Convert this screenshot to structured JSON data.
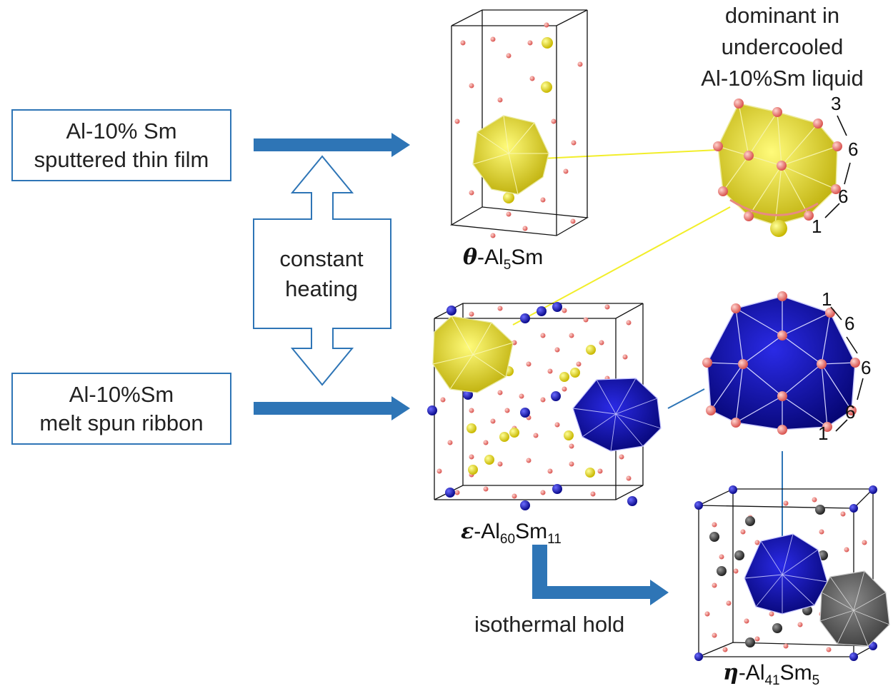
{
  "boxes": {
    "thin_film": [
      "Al-10% Sm",
      "sputtered thin film"
    ],
    "ribbon": [
      "Al-10%Sm",
      "melt spun ribbon"
    ]
  },
  "labels": {
    "constant_heating": [
      "constant",
      "heating"
    ],
    "isothermal_hold": "isothermal hold",
    "dominant": [
      "dominant in",
      "undercooled",
      "Al-10%Sm liquid"
    ]
  },
  "phases": {
    "theta": {
      "symbol": "θ",
      "prefix": "-Al",
      "sub1": "5",
      "mid": "Sm",
      "sub2": ""
    },
    "epsilon": {
      "symbol": "ε",
      "prefix": "-Al",
      "sub1": "60",
      "mid": "Sm",
      "sub2": "11"
    },
    "eta": {
      "symbol": "η",
      "prefix": "-Al",
      "sub1": "41",
      "mid": "Sm",
      "sub2": "5"
    }
  },
  "shell_numbers": {
    "yellow_cluster": [
      "3",
      "6",
      "6",
      "1"
    ],
    "blue_cluster": [
      "1",
      "6",
      "6",
      "6",
      "1"
    ]
  },
  "colors": {
    "arrow_blue": "#2e75b6",
    "al_atom": "#e8736f",
    "sm_yellow": "#e6e21a",
    "sm_blue": "#1010c8",
    "sm_gray": "#555555"
  }
}
